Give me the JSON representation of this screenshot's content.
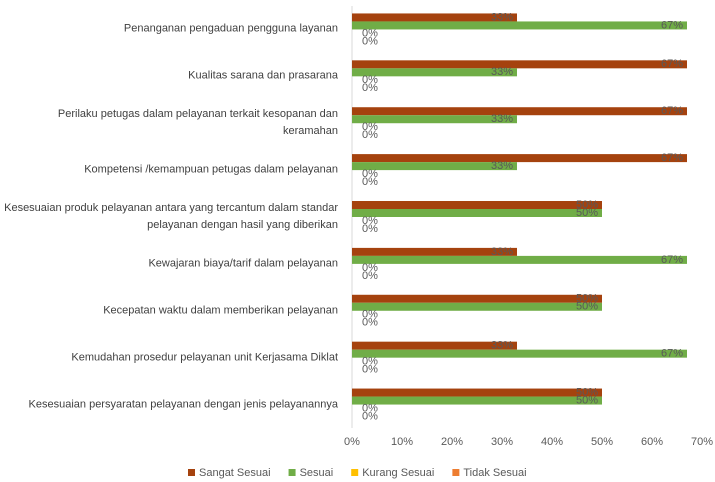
{
  "chart_data": {
    "type": "bar",
    "orientation": "horizontal",
    "categories": [
      "Penanganan pengaduan pengguna layanan",
      "Kualitas sarana dan prasarana",
      "Perilaku petugas dalam pelayanan terkait kesopanan dan keramahan",
      "Kompetensi /kemampuan petugas dalam pelayanan",
      "Kesesuaian produk pelayanan antara yang tercantum dalam standar pelayanan dengan hasil yang diberikan",
      "Kewajaran biaya/tarif dalam pelayanan",
      "Kecepatan waktu dalam memberikan pelayanan",
      "Kemudahan prosedur pelayanan unit Kerjasama Diklat",
      "Kesesuaian persyaratan pelayanan dengan jenis pelayanannya"
    ],
    "series": [
      {
        "name": "Sangat Sesuai",
        "color": "#a5420e",
        "values": [
          33,
          67,
          67,
          67,
          50,
          33,
          50,
          33,
          50
        ],
        "value_labels": [
          "33%",
          "67%",
          "67%",
          "67%",
          "50%",
          "33%",
          "50%",
          "33%",
          "50%"
        ]
      },
      {
        "name": "Sesuai",
        "color": "#70ad47",
        "values": [
          67,
          33,
          33,
          33,
          50,
          67,
          50,
          67,
          50
        ],
        "value_labels": [
          "67%",
          "33%",
          "33%",
          "33%",
          "50%",
          "67%",
          "50%",
          "67%",
          "50%"
        ]
      },
      {
        "name": "Kurang Sesuai",
        "color": "#ffc000",
        "values": [
          0,
          0,
          0,
          0,
          0,
          0,
          0,
          0,
          0
        ],
        "value_labels": [
          "0%",
          "0%",
          "0%",
          "0%",
          "0%",
          "0%",
          "0%",
          "0%",
          "0%"
        ]
      },
      {
        "name": "Tidak Sesuai",
        "color": "#ed7d31",
        "values": [
          0,
          0,
          0,
          0,
          0,
          0,
          0,
          0,
          0
        ],
        "value_labels": [
          "0%",
          "0%",
          "0%",
          "0%",
          "0%",
          "0%",
          "0%",
          "0%",
          "0%"
        ]
      }
    ],
    "xlim": [
      0,
      70
    ],
    "xticks": [
      {
        "value": 0,
        "label": "0%"
      },
      {
        "value": 10,
        "label": "10%"
      },
      {
        "value": 20,
        "label": "20%"
      },
      {
        "value": 30,
        "label": "30%"
      },
      {
        "value": 40,
        "label": "40%"
      },
      {
        "value": 50,
        "label": "50%"
      },
      {
        "value": 60,
        "label": "60%"
      },
      {
        "value": 70,
        "label": "70%"
      }
    ],
    "grid": false,
    "legend": "bottom"
  }
}
